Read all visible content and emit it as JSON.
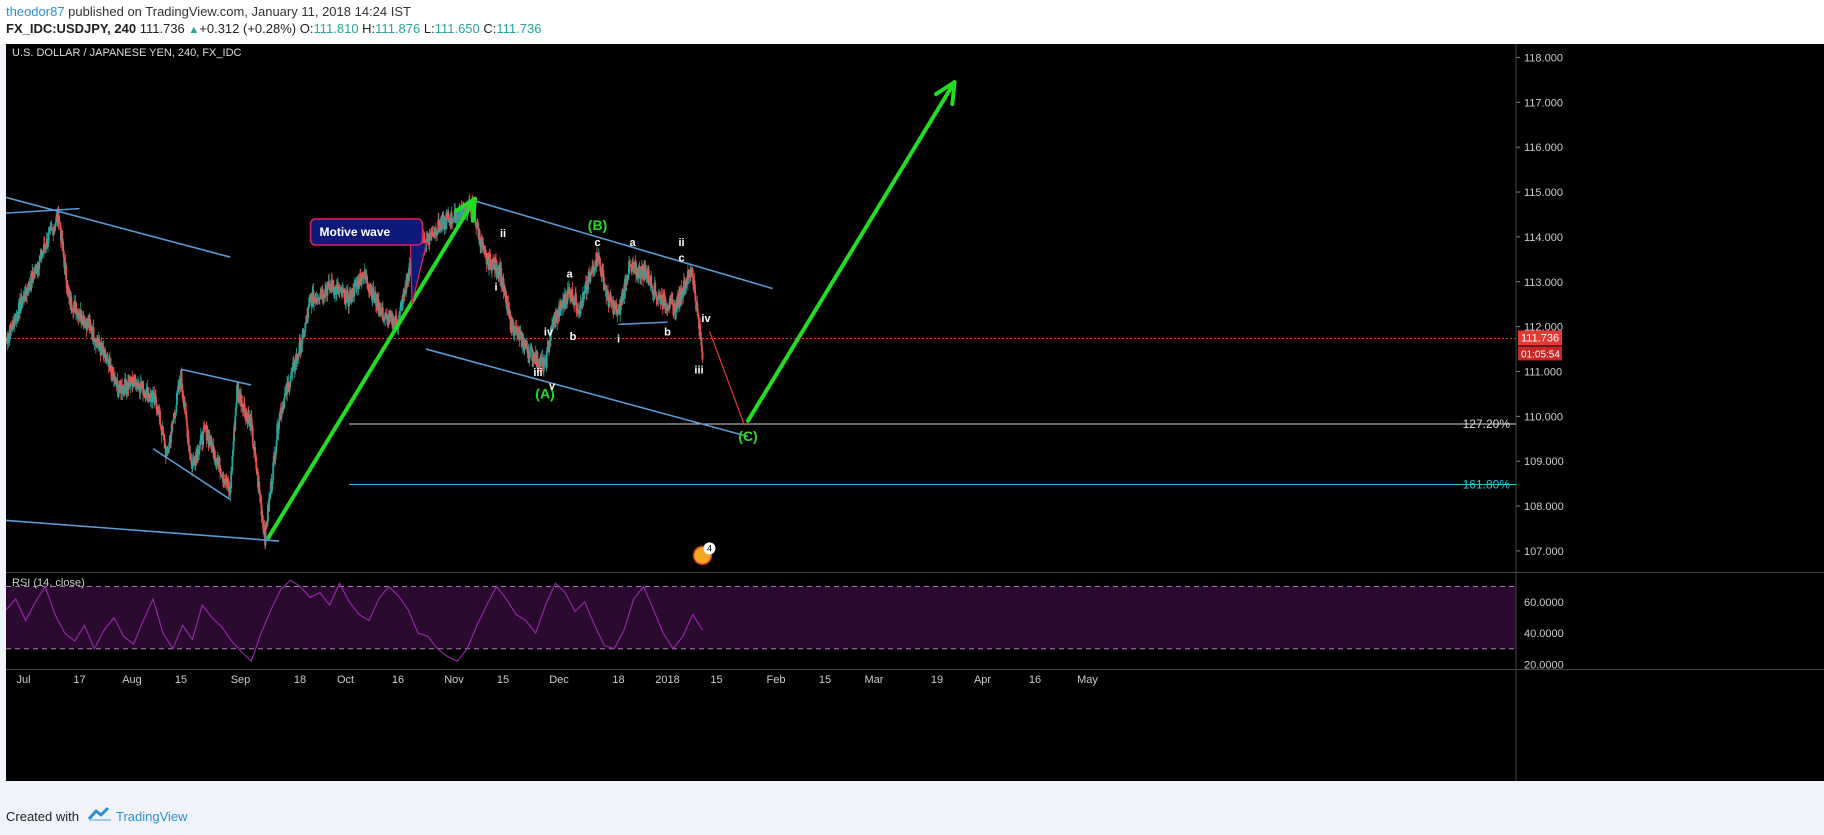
{
  "header": {
    "user": "theodor87",
    "published": " published on TradingView.com, January 11, 2018 14:24 IST",
    "symbol": "FX_IDC:USDJPY, 240",
    "last": "111.736",
    "change": "+0.312 (+0.28%)",
    "open_label": "O:",
    "open": "111.810",
    "high_label": "H:",
    "high": "111.876",
    "low_label": "L:",
    "low": "111.650",
    "close_label": "C:",
    "close": "111.736"
  },
  "footer": {
    "created_with": "Created with",
    "brand": "TradingView"
  },
  "colors": {
    "background": "#000000",
    "up_candle": "#26a69a",
    "down_candle": "#ef5350",
    "trendline": "#5b9bd5",
    "projection_arrow": "#22dd22",
    "wave_label_major": "#22dd22",
    "wave_label_minor": "#ffffff",
    "rsi_line": "#9c27b0",
    "rsi_band": "#2a0a2e",
    "price_line": "#e53935",
    "fib_127": "#d8d8d8",
    "fib_161": "#26c6da"
  },
  "chart_data": {
    "type": "candlestick",
    "title": "U.S. DOLLAR / JAPANESE YEN, 240, FX_IDC",
    "price_axis": {
      "ylim": [
        106.53,
        118.3
      ],
      "ticks": [
        "118.000",
        "117.000",
        "116.000",
        "115.000",
        "114.000",
        "113.000",
        "112.000",
        "111.000",
        "110.000",
        "109.000",
        "108.000",
        "107.000"
      ],
      "current_price": "111.736",
      "countdown": "01:05:54"
    },
    "time_axis": {
      "ticks": [
        {
          "label": "Jul",
          "date": "2017-07-01"
        },
        {
          "label": "17",
          "date": "2017-07-17"
        },
        {
          "label": "Aug",
          "date": "2017-08-01"
        },
        {
          "label": "15",
          "date": "2017-08-15"
        },
        {
          "label": "Sep",
          "date": "2017-09-01"
        },
        {
          "label": "18",
          "date": "2017-09-18"
        },
        {
          "label": "Oct",
          "date": "2017-10-01"
        },
        {
          "label": "16",
          "date": "2017-10-16"
        },
        {
          "label": "Nov",
          "date": "2017-11-01"
        },
        {
          "label": "15",
          "date": "2017-11-15"
        },
        {
          "label": "Dec",
          "date": "2017-12-01"
        },
        {
          "label": "18",
          "date": "2017-12-18"
        },
        {
          "label": "2018",
          "date": "2018-01-01"
        },
        {
          "label": "15",
          "date": "2018-01-15"
        },
        {
          "label": "Feb",
          "date": "2018-02-01"
        },
        {
          "label": "15",
          "date": "2018-02-15"
        },
        {
          "label": "Mar",
          "date": "2018-03-01"
        },
        {
          "label": "19",
          "date": "2018-03-19"
        },
        {
          "label": "Apr",
          "date": "2018-04-01"
        },
        {
          "label": "16",
          "date": "2018-04-16"
        },
        {
          "label": "May",
          "date": "2018-05-01"
        }
      ]
    },
    "price_path": [
      {
        "date": "2017-06-26",
        "price": 111.7
      },
      {
        "date": "2017-07-03",
        "price": 113.0
      },
      {
        "date": "2017-07-11",
        "price": 114.5
      },
      {
        "date": "2017-07-14",
        "price": 112.6
      },
      {
        "date": "2017-07-20",
        "price": 112.0
      },
      {
        "date": "2017-07-26",
        "price": 111.0
      },
      {
        "date": "2017-07-28",
        "price": 110.6
      },
      {
        "date": "2017-08-02",
        "price": 110.8
      },
      {
        "date": "2017-08-08",
        "price": 110.3
      },
      {
        "date": "2017-08-11",
        "price": 109.1
      },
      {
        "date": "2017-08-15",
        "price": 110.9
      },
      {
        "date": "2017-08-18",
        "price": 108.9
      },
      {
        "date": "2017-08-22",
        "price": 109.7
      },
      {
        "date": "2017-08-29",
        "price": 108.3
      },
      {
        "date": "2017-08-31",
        "price": 110.6
      },
      {
        "date": "2017-09-04",
        "price": 109.8
      },
      {
        "date": "2017-09-08",
        "price": 107.3
      },
      {
        "date": "2017-09-12",
        "price": 110.0
      },
      {
        "date": "2017-09-19",
        "price": 111.8
      },
      {
        "date": "2017-09-21",
        "price": 112.6
      },
      {
        "date": "2017-09-27",
        "price": 112.9
      },
      {
        "date": "2017-10-02",
        "price": 112.6
      },
      {
        "date": "2017-10-06",
        "price": 113.2
      },
      {
        "date": "2017-10-12",
        "price": 112.2
      },
      {
        "date": "2017-10-16",
        "price": 112.1
      },
      {
        "date": "2017-10-20",
        "price": 113.5
      },
      {
        "date": "2017-10-27",
        "price": 114.2
      },
      {
        "date": "2017-11-06",
        "price": 114.7
      },
      {
        "date": "2017-11-10",
        "price": 113.5
      },
      {
        "date": "2017-11-14",
        "price": 113.3
      },
      {
        "date": "2017-11-17",
        "price": 112.1
      },
      {
        "date": "2017-11-22",
        "price": 111.5
      },
      {
        "date": "2017-11-27",
        "price": 111.1
      },
      {
        "date": "2017-11-29",
        "price": 112.0
      },
      {
        "date": "2017-12-04",
        "price": 112.8
      },
      {
        "date": "2017-12-07",
        "price": 112.4
      },
      {
        "date": "2017-12-12",
        "price": 113.6
      },
      {
        "date": "2017-12-15",
        "price": 112.6
      },
      {
        "date": "2017-12-18",
        "price": 112.3
      },
      {
        "date": "2017-12-21",
        "price": 113.3
      },
      {
        "date": "2017-12-26",
        "price": 113.2
      },
      {
        "date": "2017-12-29",
        "price": 112.7
      },
      {
        "date": "2018-01-03",
        "price": 112.4
      },
      {
        "date": "2018-01-08",
        "price": 113.3
      },
      {
        "date": "2018-01-10",
        "price": 112.0
      },
      {
        "date": "2018-01-11",
        "price": 111.4
      },
      {
        "date": "2018-01-11",
        "price": 111.736
      }
    ],
    "rsi": {
      "label": "RSI (14, close)",
      "ylim": [
        17,
        78
      ],
      "ticks": [
        "60.0000",
        "40.0000",
        "20.0000"
      ],
      "band": [
        30,
        70
      ],
      "values": [
        55,
        62,
        48,
        60,
        70,
        52,
        40,
        35,
        45,
        30,
        42,
        50,
        38,
        33,
        48,
        62,
        40,
        30,
        45,
        36,
        58,
        50,
        44,
        35,
        28,
        22,
        40,
        55,
        68,
        74,
        70,
        63,
        66,
        58,
        72,
        60,
        52,
        48,
        62,
        70,
        64,
        55,
        40,
        38,
        30,
        25,
        22,
        30,
        45,
        58,
        70,
        62,
        52,
        48,
        40,
        58,
        72,
        66,
        54,
        60,
        45,
        32,
        30,
        42,
        62,
        70,
        55,
        40,
        30,
        38,
        52,
        42
      ]
    },
    "wave_labels": [
      {
        "text": "(A)",
        "date": "2017-11-27",
        "price": 110.4,
        "style": "major"
      },
      {
        "text": "(B)",
        "date": "2017-12-12",
        "price": 114.15,
        "style": "major"
      },
      {
        "text": "(C)",
        "date": "2018-01-24",
        "price": 109.45,
        "style": "major"
      },
      {
        "text": "i",
        "date": "2017-11-13",
        "price": 112.8,
        "style": "minor"
      },
      {
        "text": "ii",
        "date": "2017-11-15",
        "price": 114.0,
        "style": "minor"
      },
      {
        "text": "iii",
        "date": "2017-11-25",
        "price": 110.9,
        "style": "minor"
      },
      {
        "text": "iv",
        "date": "2017-11-28",
        "price": 111.8,
        "style": "minor"
      },
      {
        "text": "v",
        "date": "2017-11-29",
        "price": 110.6,
        "style": "minor"
      },
      {
        "text": "a",
        "date": "2017-12-04",
        "price": 113.1,
        "style": "minor"
      },
      {
        "text": "b",
        "date": "2017-12-05",
        "price": 111.7,
        "style": "minor"
      },
      {
        "text": "c",
        "date": "2017-12-12",
        "price": 113.8,
        "style": "minor"
      },
      {
        "text": "i",
        "date": "2017-12-18",
        "price": 111.65,
        "style": "minor"
      },
      {
        "text": "a",
        "date": "2017-12-22",
        "price": 113.8,
        "style": "minor"
      },
      {
        "text": "b",
        "date": "2018-01-01",
        "price": 111.8,
        "style": "minor"
      },
      {
        "text": "ii",
        "date": "2018-01-05",
        "price": 113.8,
        "style": "minor"
      },
      {
        "text": "c",
        "date": "2018-01-05",
        "price": 113.45,
        "style": "minor"
      },
      {
        "text": "iii",
        "date": "2018-01-10",
        "price": 110.95,
        "style": "minor"
      },
      {
        "text": "iv",
        "date": "2018-01-12",
        "price": 112.1,
        "style": "minor"
      }
    ],
    "annotations": [
      {
        "type": "callout",
        "text": "Motive wave",
        "date": "2017-09-21",
        "price": 114.4,
        "pointer": {
          "date": "2017-10-20",
          "price": 112.5
        }
      }
    ],
    "trendlines": [
      {
        "from": {
          "date": "2017-06-26",
          "price": 114.88
        },
        "to": {
          "date": "2017-08-29",
          "price": 113.55
        }
      },
      {
        "from": {
          "date": "2017-06-26",
          "price": 114.53
        },
        "to": {
          "date": "2017-07-17",
          "price": 114.63
        }
      },
      {
        "from": {
          "date": "2017-08-15",
          "price": 111.05
        },
        "to": {
          "date": "2017-09-04",
          "price": 110.7
        }
      },
      {
        "from": {
          "date": "2017-08-07",
          "price": 109.28
        },
        "to": {
          "date": "2017-08-29",
          "price": 108.15
        }
      },
      {
        "from": {
          "date": "2017-06-26",
          "price": 107.68
        },
        "to": {
          "date": "2017-09-12",
          "price": 107.22
        }
      },
      {
        "from": {
          "date": "2017-11-07",
          "price": 114.8
        },
        "to": {
          "date": "2018-01-31",
          "price": 112.85
        }
      },
      {
        "from": {
          "date": "2017-10-24",
          "price": 111.5
        },
        "to": {
          "date": "2018-01-24",
          "price": 109.55
        }
      },
      {
        "from": {
          "date": "2017-12-18",
          "price": 112.05
        },
        "to": {
          "date": "2018-01-01",
          "price": 112.1
        }
      }
    ],
    "projection": [
      {
        "type": "arrow",
        "from": {
          "date": "2017-09-09",
          "price": 107.3
        },
        "to": {
          "date": "2017-11-07",
          "price": 114.85
        }
      },
      {
        "type": "arrow",
        "from": {
          "date": "2018-01-24",
          "price": 109.9
        },
        "to": {
          "date": "2018-03-24",
          "price": 117.45
        }
      },
      {
        "type": "line",
        "from": {
          "date": "2018-01-13",
          "price": 111.9
        },
        "to": {
          "date": "2018-01-23",
          "price": 109.8
        }
      }
    ],
    "fib_levels": [
      {
        "label": "127.20%",
        "price": 109.83,
        "from_date": "2017-10-02"
      },
      {
        "label": "161.80%",
        "price": 108.48,
        "from_date": "2017-10-02"
      }
    ],
    "event_badge": {
      "count": "4",
      "date": "2018-01-11"
    }
  }
}
